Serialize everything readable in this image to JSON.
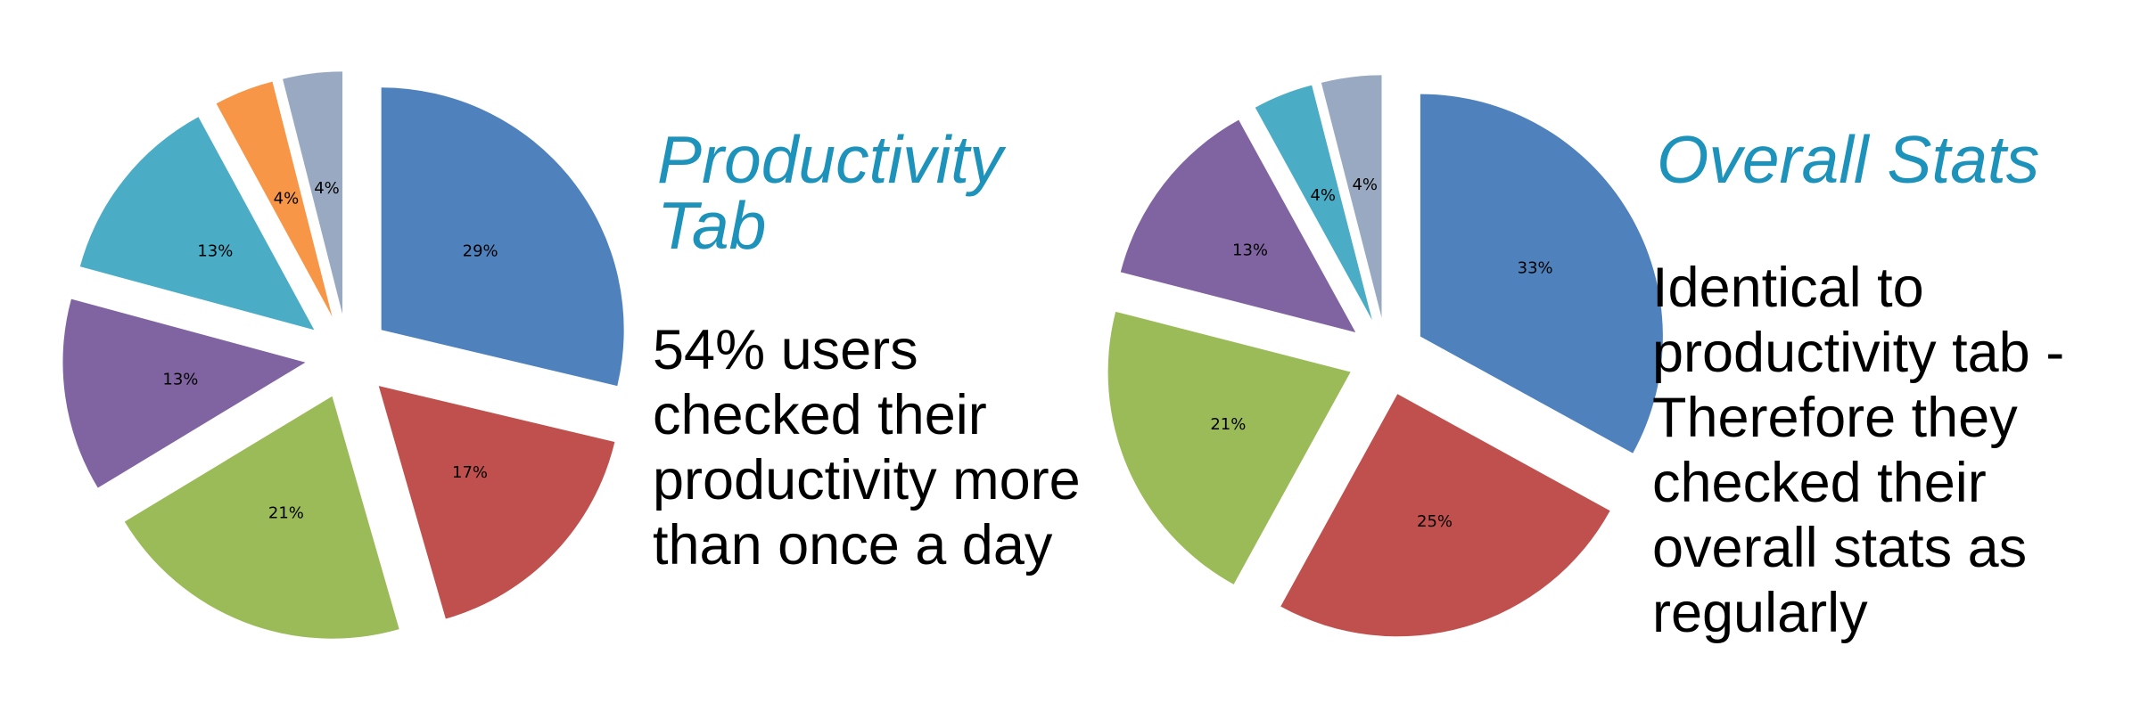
{
  "chart_data": [
    {
      "type": "pie",
      "slices": [
        {
          "label": "29%",
          "value": 29,
          "color": "#4f81bd"
        },
        {
          "label": "17%",
          "value": 17,
          "color": "#c0504d"
        },
        {
          "label": "21%",
          "value": 21,
          "color": "#9bbb59"
        },
        {
          "label": "13%",
          "value": 13,
          "color": "#8064a2"
        },
        {
          "label": "13%",
          "value": 13,
          "color": "#4bacc6"
        },
        {
          "label": "4%",
          "value": 4,
          "color": "#f79646"
        },
        {
          "label": "4%",
          "value": 4,
          "color": "#98a9c1"
        }
      ],
      "title": "",
      "legend": false,
      "exploded": true
    },
    {
      "type": "pie",
      "slices": [
        {
          "label": "33%",
          "value": 33,
          "color": "#4f81bd"
        },
        {
          "label": "25%",
          "value": 25,
          "color": "#c0504d"
        },
        {
          "label": "21%",
          "value": 21,
          "color": "#9bbb59"
        },
        {
          "label": "13%",
          "value": 13,
          "color": "#8064a2"
        },
        {
          "label": "4%",
          "value": 4,
          "color": "#4bacc6"
        },
        {
          "label": "4%",
          "value": 4,
          "color": "#98a9c1"
        }
      ],
      "title": "",
      "legend": false,
      "exploded": true
    }
  ],
  "panels": {
    "left": {
      "heading": "Productivity Tab",
      "text": "54% users checked their productivity more than once a day"
    },
    "right": {
      "heading": "Overall Stats",
      "text": "Identical to productivity tab - Therefore they checked their overall stats as regularly"
    }
  }
}
